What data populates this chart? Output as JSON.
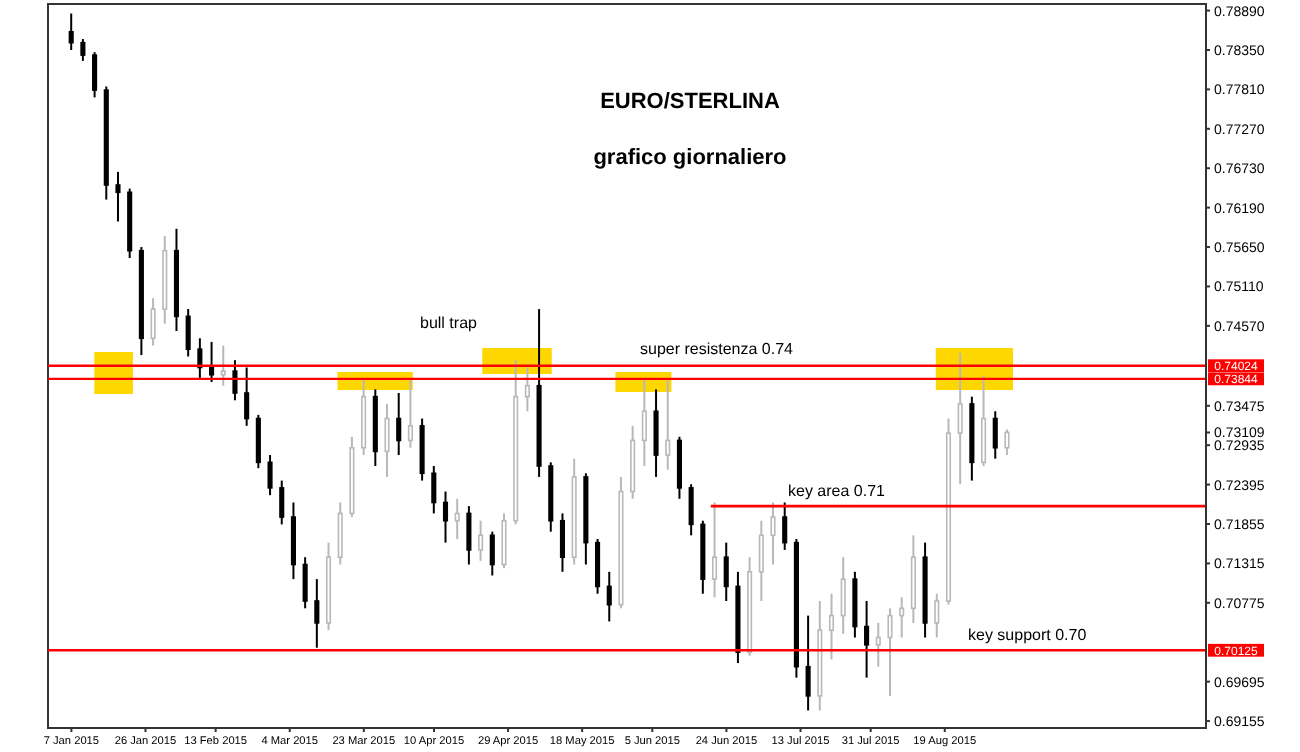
{
  "chart_data": {
    "type": "candlestick",
    "title": "EURO/STERLINA",
    "subtitle": "grafico giornaliero",
    "x": [
      "2015-01-07",
      "2015-01-10",
      "2015-01-13",
      "2015-01-16",
      "2015-01-19",
      "2015-01-22",
      "2015-01-25",
      "2015-01-28",
      "2015-01-31",
      "2015-02-03",
      "2015-02-06",
      "2015-02-09",
      "2015-02-12",
      "2015-02-15",
      "2015-02-18",
      "2015-02-21",
      "2015-02-24",
      "2015-02-27",
      "2015-03-02",
      "2015-03-05",
      "2015-03-08",
      "2015-03-11",
      "2015-03-14",
      "2015-03-17",
      "2015-03-20",
      "2015-03-23",
      "2015-03-26",
      "2015-03-29",
      "2015-04-01",
      "2015-04-04",
      "2015-04-07",
      "2015-04-10",
      "2015-04-13",
      "2015-04-16",
      "2015-04-19",
      "2015-04-22",
      "2015-04-25",
      "2015-04-28",
      "2015-05-01",
      "2015-05-04",
      "2015-05-07",
      "2015-05-10",
      "2015-05-13",
      "2015-05-16",
      "2015-05-19",
      "2015-05-22",
      "2015-05-25",
      "2015-05-28",
      "2015-05-31",
      "2015-06-03",
      "2015-06-06",
      "2015-06-09",
      "2015-06-12",
      "2015-06-15",
      "2015-06-18",
      "2015-06-21",
      "2015-06-24",
      "2015-06-27",
      "2015-06-30",
      "2015-07-03",
      "2015-07-06",
      "2015-07-09",
      "2015-07-12",
      "2015-07-15",
      "2015-07-18",
      "2015-07-21",
      "2015-07-24",
      "2015-07-27",
      "2015-07-30",
      "2015-08-02",
      "2015-08-05",
      "2015-08-08",
      "2015-08-11",
      "2015-08-14",
      "2015-08-17",
      "2015-08-20",
      "2015-08-23",
      "2015-08-26",
      "2015-08-29",
      "2015-09-01",
      "2015-09-04"
    ],
    "ohlc": [
      [
        0.786,
        0.7885,
        0.7835,
        0.7845
      ],
      [
        0.7845,
        0.785,
        0.782,
        0.7828
      ],
      [
        0.7828,
        0.7832,
        0.777,
        0.778
      ],
      [
        0.778,
        0.7785,
        0.763,
        0.765
      ],
      [
        0.765,
        0.7668,
        0.76,
        0.764
      ],
      [
        0.764,
        0.7645,
        0.755,
        0.756
      ],
      [
        0.756,
        0.7565,
        0.7417,
        0.744
      ],
      [
        0.744,
        0.7495,
        0.743,
        0.748
      ],
      [
        0.748,
        0.758,
        0.746,
        0.756
      ],
      [
        0.756,
        0.759,
        0.745,
        0.747
      ],
      [
        0.747,
        0.748,
        0.7415,
        0.7425
      ],
      [
        0.7425,
        0.744,
        0.7385,
        0.74
      ],
      [
        0.74,
        0.7435,
        0.738,
        0.739
      ],
      [
        0.739,
        0.743,
        0.7375,
        0.7395
      ],
      [
        0.7395,
        0.741,
        0.7355,
        0.7365
      ],
      [
        0.7365,
        0.74,
        0.732,
        0.733
      ],
      [
        0.733,
        0.7335,
        0.7262,
        0.727
      ],
      [
        0.727,
        0.728,
        0.7225,
        0.7235
      ],
      [
        0.7235,
        0.7245,
        0.7185,
        0.7195
      ],
      [
        0.7195,
        0.7215,
        0.711,
        0.713
      ],
      [
        0.713,
        0.714,
        0.707,
        0.708
      ],
      [
        0.708,
        0.711,
        0.7016,
        0.705
      ],
      [
        0.705,
        0.716,
        0.704,
        0.714
      ],
      [
        0.714,
        0.7215,
        0.713,
        0.72
      ],
      [
        0.72,
        0.7305,
        0.7195,
        0.729
      ],
      [
        0.729,
        0.7385,
        0.728,
        0.736
      ],
      [
        0.736,
        0.737,
        0.7265,
        0.7285
      ],
      [
        0.7285,
        0.735,
        0.725,
        0.733
      ],
      [
        0.733,
        0.7365,
        0.728,
        0.73
      ],
      [
        0.73,
        0.7385,
        0.729,
        0.732
      ],
      [
        0.732,
        0.733,
        0.7245,
        0.7255
      ],
      [
        0.7255,
        0.7265,
        0.72,
        0.7215
      ],
      [
        0.7215,
        0.723,
        0.716,
        0.719
      ],
      [
        0.719,
        0.722,
        0.7165,
        0.72
      ],
      [
        0.72,
        0.721,
        0.713,
        0.715
      ],
      [
        0.715,
        0.719,
        0.7135,
        0.717
      ],
      [
        0.717,
        0.7175,
        0.7115,
        0.713
      ],
      [
        0.713,
        0.72,
        0.7125,
        0.719
      ],
      [
        0.719,
        0.741,
        0.7185,
        0.736
      ],
      [
        0.736,
        0.74,
        0.734,
        0.7375
      ],
      [
        0.7375,
        0.748,
        0.725,
        0.7265
      ],
      [
        0.7265,
        0.727,
        0.7175,
        0.719
      ],
      [
        0.719,
        0.72,
        0.712,
        0.714
      ],
      [
        0.714,
        0.7275,
        0.713,
        0.725
      ],
      [
        0.725,
        0.7255,
        0.713,
        0.716
      ],
      [
        0.716,
        0.7165,
        0.709,
        0.71
      ],
      [
        0.71,
        0.712,
        0.7052,
        0.7075
      ],
      [
        0.7075,
        0.725,
        0.707,
        0.723
      ],
      [
        0.723,
        0.732,
        0.722,
        0.73
      ],
      [
        0.73,
        0.7385,
        0.7265,
        0.734
      ],
      [
        0.734,
        0.737,
        0.725,
        0.728
      ],
      [
        0.728,
        0.7385,
        0.726,
        0.73
      ],
      [
        0.73,
        0.7305,
        0.722,
        0.7235
      ],
      [
        0.7235,
        0.724,
        0.717,
        0.7185
      ],
      [
        0.7185,
        0.719,
        0.709,
        0.711
      ],
      [
        0.711,
        0.7215,
        0.7085,
        0.714
      ],
      [
        0.714,
        0.716,
        0.708,
        0.71
      ],
      [
        0.71,
        0.712,
        0.6995,
        0.701
      ],
      [
        0.701,
        0.714,
        0.7005,
        0.712
      ],
      [
        0.712,
        0.719,
        0.708,
        0.717
      ],
      [
        0.717,
        0.7215,
        0.713,
        0.7195
      ],
      [
        0.7195,
        0.7215,
        0.715,
        0.716
      ],
      [
        0.716,
        0.7165,
        0.6975,
        0.699
      ],
      [
        0.699,
        0.706,
        0.693,
        0.695
      ],
      [
        0.695,
        0.708,
        0.693,
        0.704
      ],
      [
        0.704,
        0.709,
        0.7,
        0.706
      ],
      [
        0.706,
        0.714,
        0.7035,
        0.711
      ],
      [
        0.711,
        0.712,
        0.703,
        0.7045
      ],
      [
        0.7045,
        0.708,
        0.6975,
        0.702
      ],
      [
        0.702,
        0.705,
        0.699,
        0.703
      ],
      [
        0.703,
        0.707,
        0.695,
        0.706
      ],
      [
        0.706,
        0.7085,
        0.703,
        0.707
      ],
      [
        0.707,
        0.717,
        0.705,
        0.714
      ],
      [
        0.714,
        0.716,
        0.703,
        0.705
      ],
      [
        0.705,
        0.709,
        0.703,
        0.708
      ],
      [
        0.708,
        0.733,
        0.7075,
        0.731
      ],
      [
        0.731,
        0.742,
        0.724,
        0.735
      ],
      [
        0.735,
        0.736,
        0.7245,
        0.727
      ],
      [
        0.727,
        0.7388,
        0.7265,
        0.733
      ],
      [
        0.733,
        0.734,
        0.7275,
        0.729
      ],
      [
        0.729,
        0.7315,
        0.728,
        0.7311
      ]
    ],
    "series": [
      {
        "type": "line",
        "x": [
          "2015-06-20",
          "2015-10-25"
        ],
        "values": [
          0.721,
          0.721
        ],
        "color": "#ff0000",
        "marker": "none"
      }
    ],
    "xlim": [
      "2015-01-01",
      "2015-10-25"
    ],
    "xticks": [
      {
        "value": "2015-01-07",
        "label": "7 Jan 2015"
      },
      {
        "value": "2015-01-26",
        "label": "26 Jan 2015"
      },
      {
        "value": "2015-02-13",
        "label": "13 Feb 2015"
      },
      {
        "value": "2015-03-04",
        "label": "4 Mar 2015"
      },
      {
        "value": "2015-03-23",
        "label": "23 Mar 2015"
      },
      {
        "value": "2015-04-10",
        "label": "10 Apr 2015"
      },
      {
        "value": "2015-04-29",
        "label": "29 Apr 2015"
      },
      {
        "value": "2015-05-18",
        "label": "18 May 2015"
      },
      {
        "value": "2015-06-05",
        "label": "5 Jun 2015"
      },
      {
        "value": "2015-06-24",
        "label": "24 Jun 2015"
      },
      {
        "value": "2015-07-13",
        "label": "13 Jul 2015"
      },
      {
        "value": "2015-07-31",
        "label": "31 Jul 2015"
      },
      {
        "value": "2015-08-19",
        "label": "19 Aug 2015"
      }
    ],
    "ylim": [
      0.6906,
      0.7898
    ],
    "yticks": [
      {
        "value": 0.69155,
        "label": "0.69155"
      },
      {
        "value": 0.69695,
        "label": "0.69695"
      },
      {
        "value": 0.70775,
        "label": "0.70775"
      },
      {
        "value": 0.71315,
        "label": "0.71315"
      },
      {
        "value": 0.71855,
        "label": "0.71855"
      },
      {
        "value": 0.72395,
        "label": "0.72395"
      },
      {
        "value": 0.72935,
        "label": "0.72935"
      },
      {
        "value": 0.73109,
        "label": "0.73109"
      },
      {
        "value": 0.73475,
        "label": "0.73475"
      },
      {
        "value": 0.7457,
        "label": "0.74570"
      },
      {
        "value": 0.7511,
        "label": "0.75110"
      },
      {
        "value": 0.7565,
        "label": "0.75650"
      },
      {
        "value": 0.7619,
        "label": "0.76190"
      },
      {
        "value": 0.7673,
        "label": "0.76730"
      },
      {
        "value": 0.7727,
        "label": "0.77270"
      },
      {
        "value": 0.7781,
        "label": "0.77810"
      },
      {
        "value": 0.7835,
        "label": "0.78350"
      },
      {
        "value": 0.7889,
        "label": "0.78890"
      }
    ],
    "ref_lines": [
      {
        "axis": "y",
        "value": 0.74024,
        "label": "0.74024",
        "color": "#ff0000"
      },
      {
        "axis": "y",
        "value": 0.73844,
        "label": "0.73844",
        "color": "#ff0000"
      },
      {
        "axis": "y",
        "value": 0.70125,
        "label": "0.70125",
        "color": "#ff0000"
      }
    ],
    "annotations": [
      "bull trap",
      "super resistenza 0.74",
      "key area 0.71",
      "key support 0.70"
    ]
  }
}
